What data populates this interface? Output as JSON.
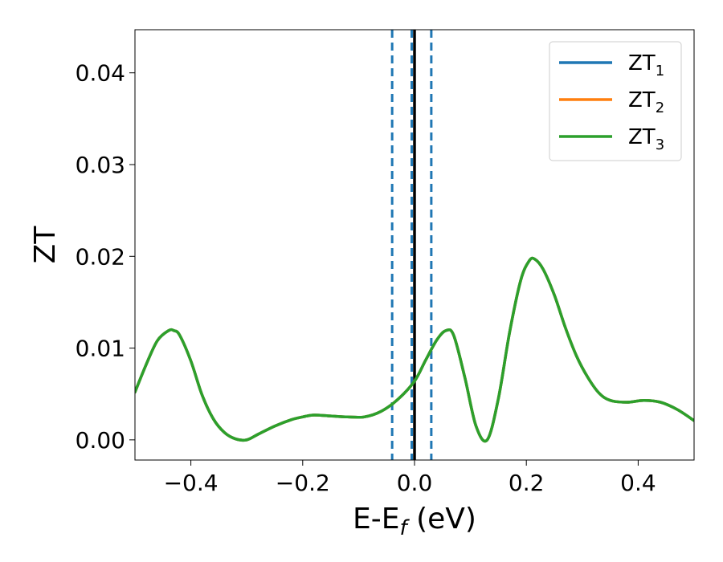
{
  "chart_data": {
    "type": "line",
    "xlabel": "E-E",
    "xlabel_sub": "f",
    "xlabel_unit": " (eV)",
    "ylabel": "ZT",
    "xlim": [
      -0.5,
      0.5
    ],
    "ylim": [
      -0.0022,
      0.0447
    ],
    "xticks": [
      -0.4,
      -0.2,
      0.0,
      0.2,
      0.4
    ],
    "xtick_labels": [
      "−0.4",
      "−0.2",
      "0.0",
      "0.2",
      "0.4"
    ],
    "yticks": [
      0.0,
      0.01,
      0.02,
      0.03,
      0.04
    ],
    "ytick_labels": [
      "0.00",
      "0.01",
      "0.02",
      "0.03",
      "0.04"
    ],
    "grid": false,
    "legend_position": "top-right",
    "vertical_lines": [
      {
        "x": -0.04,
        "style": "dashed",
        "color": "#1f77b4"
      },
      {
        "x": -0.005,
        "style": "dashed",
        "color": "#1f77b4"
      },
      {
        "x": 0.03,
        "style": "dashed",
        "color": "#1f77b4"
      },
      {
        "x": 0.0,
        "style": "solid",
        "color": "#000000"
      }
    ],
    "x": [
      -0.5,
      -0.48,
      -0.46,
      -0.44,
      -0.43,
      -0.42,
      -0.4,
      -0.38,
      -0.36,
      -0.34,
      -0.32,
      -0.3,
      -0.28,
      -0.25,
      -0.22,
      -0.2,
      -0.18,
      -0.15,
      -0.12,
      -0.09,
      -0.06,
      -0.03,
      0.0,
      0.02,
      0.04,
      0.056,
      0.07,
      0.09,
      0.11,
      0.13,
      0.15,
      0.17,
      0.19,
      0.205,
      0.215,
      0.23,
      0.25,
      0.27,
      0.29,
      0.31,
      0.33,
      0.35,
      0.38,
      0.41,
      0.44,
      0.47,
      0.5
    ],
    "series": [
      {
        "name": "ZT",
        "name_sub": "1",
        "color": "#1f77b4",
        "values": [
          0.0052,
          0.0082,
          0.0108,
          0.0119,
          0.0119,
          0.0114,
          0.0086,
          0.0049,
          0.0023,
          0.0008,
          0.0001,
          0.0,
          0.0006,
          0.0015,
          0.0022,
          0.0025,
          0.0027,
          0.0026,
          0.0025,
          0.0025,
          0.0031,
          0.0044,
          0.0064,
          0.0087,
          0.0109,
          0.0119,
          0.0114,
          0.0068,
          0.0015,
          0.0,
          0.0045,
          0.0117,
          0.0174,
          0.0195,
          0.0197,
          0.0186,
          0.0158,
          0.0122,
          0.0091,
          0.0068,
          0.0051,
          0.0043,
          0.0041,
          0.0043,
          0.0041,
          0.0033,
          0.0021
        ]
      },
      {
        "name": "ZT",
        "name_sub": "2",
        "color": "#ff7f0e",
        "values": [
          0.0052,
          0.0082,
          0.0108,
          0.0119,
          0.0119,
          0.0114,
          0.0086,
          0.0049,
          0.0023,
          0.0008,
          0.0001,
          0.0,
          0.0006,
          0.0015,
          0.0022,
          0.0025,
          0.0027,
          0.0026,
          0.0025,
          0.0025,
          0.0031,
          0.0044,
          0.0064,
          0.0087,
          0.0109,
          0.0119,
          0.0114,
          0.0068,
          0.0015,
          0.0,
          0.0045,
          0.0117,
          0.0174,
          0.0195,
          0.0197,
          0.0186,
          0.0158,
          0.0122,
          0.0091,
          0.0068,
          0.0051,
          0.0043,
          0.0041,
          0.0043,
          0.0041,
          0.0033,
          0.0021
        ]
      },
      {
        "name": "ZT",
        "name_sub": "3",
        "color": "#2ca02c",
        "values": [
          0.0052,
          0.0082,
          0.0108,
          0.0119,
          0.0119,
          0.0114,
          0.0086,
          0.0049,
          0.0023,
          0.0008,
          0.0001,
          0.0,
          0.0006,
          0.0015,
          0.0022,
          0.0025,
          0.0027,
          0.0026,
          0.0025,
          0.0025,
          0.0031,
          0.0044,
          0.0064,
          0.0087,
          0.0109,
          0.0119,
          0.0114,
          0.0068,
          0.0015,
          0.0,
          0.0045,
          0.0117,
          0.0174,
          0.0195,
          0.0197,
          0.0186,
          0.0158,
          0.0122,
          0.0091,
          0.0068,
          0.0051,
          0.0043,
          0.0041,
          0.0043,
          0.0041,
          0.0033,
          0.0021
        ]
      }
    ]
  }
}
